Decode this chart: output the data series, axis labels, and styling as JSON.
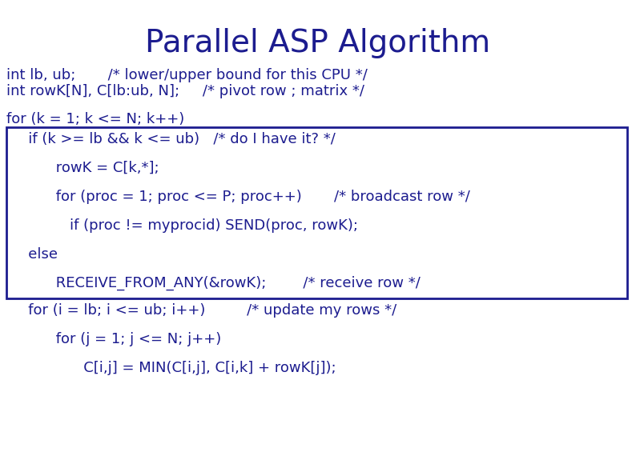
{
  "title": "Parallel ASP Algorithm",
  "title_color": "#1c1c8f",
  "title_fontsize": 28,
  "bg_color": "#ffffff",
  "text_color": "#1c1c8f",
  "code_fontsize": 13,
  "line1": "int lb, ub;       /* lower/upper bound for this CPU */",
  "line2": "int rowK[N], C[lb:ub, N];     /* pivot row ; matrix */",
  "for_line": "for (k = 1; k <= N; k++)",
  "box_lines": [
    "   if (k >= lb && k <= ub)   /* do I have it? */",
    "         rowK = C[k,*];",
    "         for (proc = 1; proc <= P; proc++)       /* broadcast row */",
    "            if (proc != myprocid) SEND(proc, rowK);",
    "   else",
    "         RECEIVE_FROM_ANY(&rowK);        /* receive row */"
  ],
  "after_lines": [
    "   for (i = lb; i <= ub; i++)         /* update my rows */",
    "         for (j = 1; j <= N; j++)",
    "               C[i,j] = MIN(C[i,j], C[i,k] + rowK[j]);"
  ],
  "font_family": "DejaVu Sans"
}
